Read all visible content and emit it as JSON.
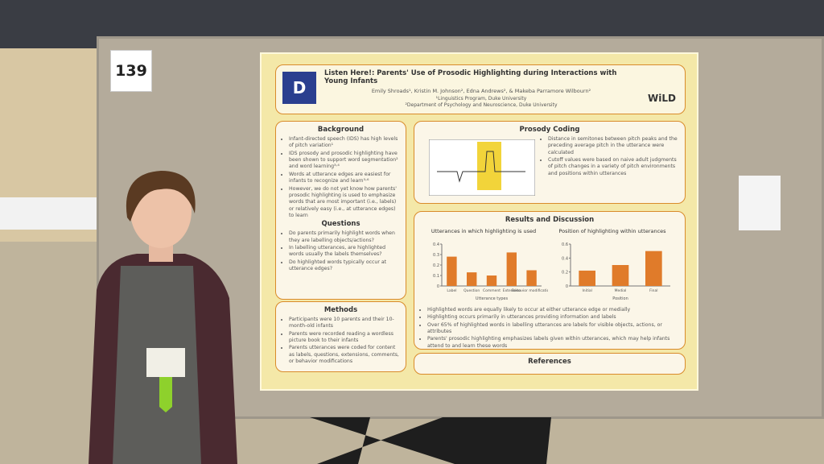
{
  "booth_number": "139",
  "poster": {
    "title": "Listen Here!: Parents' Use of Prosodic Highlighting during Interactions with Young Infants",
    "authors": "Emily Shroads¹, Kristin M. Johnson², Edna Andrews², & Makeba Parramore Wilbourn²",
    "affiliations": [
      "¹Linguistics Program, Duke University",
      "²Department of Psychology and Neuroscience, Duke University"
    ],
    "logo_text": "WiLD",
    "background": {
      "heading": "Background",
      "items": [
        "Infant-directed speech (IDS) has high levels of pitch variation¹",
        "IDS prosody and prosodic highlighting have been shown to support word segmentation² and word learning³˒⁴",
        "Words at utterance edges are easiest for infants to recognize and learn⁵˒⁶",
        "However, we do not yet know how parents' prosodic highlighting is used to emphasize words that are most important (i.e., labels) or relatively easy (i.e., at utterance edges) to learn"
      ]
    },
    "questions": {
      "heading": "Questions",
      "items": [
        "Do parents primarily highlight words when they are labelling objects/actions?",
        "In labelling utterances, are highlighted words usually the labels themselves?",
        "Do highlighted words typically occur at utterance edges?"
      ]
    },
    "methods": {
      "heading": "Methods",
      "items": [
        "Participants were 10 parents and their 10-month-old infants",
        "Parents were recorded reading a wordless picture book to their infants",
        "Parents utterances were coded for content as labels, questions, extensions, comments, or behavior modifications"
      ]
    },
    "prosody_coding": {
      "heading": "Prosody Coding",
      "items": [
        "Distance in semitones between pitch peaks and the preceding average pitch in the utterance were calculated",
        "Cutoff values were based on naive adult judgments of pitch changes in a variety of pitch environments and positions within utterances"
      ]
    },
    "results": {
      "heading": "Results and Discussion",
      "charts": [
        {
          "title": "Utterances in which highlighting is used",
          "x_label": "Utterance types",
          "categories": [
            "Label",
            "Question",
            "Comment",
            "Extension",
            "Behavior modification"
          ],
          "values": [
            0.28,
            0.13,
            0.1,
            0.32,
            0.15
          ],
          "ylim": [
            0,
            0.4
          ],
          "yticks": [
            0,
            0.1,
            0.2,
            0.3,
            0.4
          ]
        },
        {
          "title": "Position of highlighting within utterances",
          "x_label": "Position",
          "categories": [
            "Initial",
            "Medial",
            "Final"
          ],
          "values": [
            0.22,
            0.3,
            0.5
          ],
          "ylim": [
            0,
            0.6
          ],
          "yticks": [
            0,
            0.2,
            0.4,
            0.6
          ]
        }
      ],
      "items": [
        "Highlighted words are equally likely to occur at either utterance edge or medially",
        "Highlighting occurs primarily in utterances providing information and labels",
        "Over 65% of highlighted words in labelling utterances are labels for visible objects, actions, or attributes",
        "Parents' prosodic highlighting emphasizes labels given within utterances, which may help infants attend to and learn these words"
      ]
    },
    "references": {
      "heading": "References"
    }
  }
}
